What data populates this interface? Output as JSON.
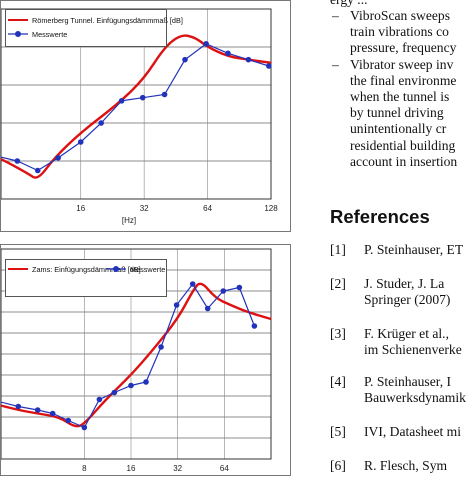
{
  "column_text": {
    "top_line": "ergy ...",
    "bullets": [
      {
        "lines": [
          "VibroScan sweeps",
          "train vibrations co",
          "pressure, frequency"
        ]
      },
      {
        "lines": [
          "Vibrator sweep inv",
          "the final environme",
          "when the tunnel is",
          "by tunnel driving",
          "unintentionally cr",
          "residential building",
          "account in insertion"
        ]
      }
    ]
  },
  "references": {
    "heading": "References",
    "items": [
      {
        "num": "[1]",
        "lines": [
          "P. Steinhauser, ET"
        ]
      },
      {
        "num": "[2]",
        "lines": [
          "J. Studer, J. La",
          "Springer (2007)"
        ]
      },
      {
        "num": "[3]",
        "lines": [
          "F. Krüger et al.,",
          "im Schienenverke"
        ]
      },
      {
        "num": "[4]",
        "lines": [
          "P. Steinhauser, I",
          "Bauwerksdynamik"
        ]
      },
      {
        "num": "[5]",
        "lines": [
          "IVI, Datasheet mi"
        ]
      },
      {
        "num": "[6]",
        "lines": [
          "R. Flesch, Sym"
        ]
      }
    ]
  },
  "chart_data": [
    {
      "type": "line",
      "xlabel": "[Hz]",
      "x_scale": "log2",
      "x_tick_labels": [
        "16",
        "32",
        "64",
        "128"
      ],
      "legend": "top-left",
      "grid": true,
      "series": [
        {
          "name": "Römerberg Tunnel. Einfügungsdämmmaß [dB]",
          "color": "#dd1111",
          "marker": "none",
          "x": [
            6,
            7,
            9,
            10,
            12,
            16,
            24,
            32,
            40,
            48,
            56,
            64,
            80,
            100,
            128
          ],
          "y": [
            -2,
            -4,
            -8,
            -10,
            -3,
            5,
            14,
            22,
            32,
            36,
            35,
            32,
            29,
            28,
            27
          ]
        },
        {
          "name": "Messwerte",
          "color": "#2233bb",
          "marker": "circle",
          "x": [
            6,
            8,
            10,
            12.5,
            16,
            20,
            25,
            31.5,
            40,
            50,
            63,
            80,
            100,
            125
          ],
          "y": [
            -2,
            -4,
            -7,
            -3,
            2,
            8,
            15,
            16,
            17,
            28,
            33,
            30,
            28,
            26
          ]
        }
      ]
    },
    {
      "type": "line",
      "xlabel": "[Hz]",
      "x_scale": "log2",
      "x_tick_labels": [
        "8",
        "16",
        "32",
        "64"
      ],
      "legend": "top-left",
      "grid": true,
      "series": [
        {
          "name": "Zams: Einfügungsdämmmaß [dB]",
          "color": "#dd1111",
          "marker": "none",
          "x": [
            2,
            3,
            4,
            5.5,
            7,
            8,
            11,
            16,
            22,
            32,
            40,
            45,
            56,
            70,
            90,
            128
          ],
          "y": [
            -8,
            -10,
            -11,
            -12,
            -15,
            -14,
            -7,
            0,
            7,
            16,
            24,
            27,
            22,
            20,
            18,
            16
          ]
        },
        {
          "name": "Messwerte",
          "color": "#2233bb",
          "marker": "circle",
          "x": [
            2,
            3,
            4,
            5,
            6.3,
            8,
            10,
            12.5,
            16,
            20,
            25,
            31.5,
            40,
            50,
            63,
            80,
            100
          ],
          "y": [
            -7,
            -9,
            -10,
            -11,
            -13,
            -15,
            -7,
            -5,
            -3,
            -2,
            8,
            20,
            26,
            19,
            24,
            25,
            14
          ]
        }
      ]
    }
  ]
}
